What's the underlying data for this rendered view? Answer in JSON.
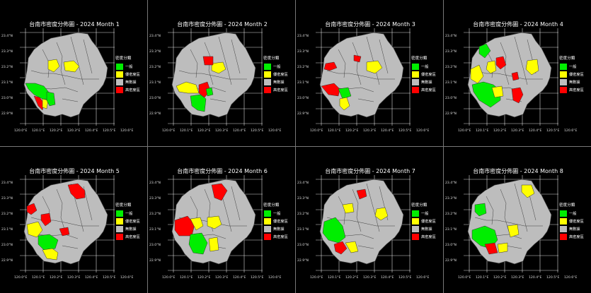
{
  "title_prefix": "台南市密度分佈圖 - 2024 Month",
  "legend": {
    "title": "密度分類",
    "items": [
      {
        "label": "一般",
        "color": "#00ee00"
      },
      {
        "label": "優密度區",
        "color": "#ffff00"
      },
      {
        "label": "無數據",
        "color": "#bdbdbd"
      },
      {
        "label": "高密度區",
        "color": "#ff0000"
      }
    ]
  },
  "axes": {
    "lon_ticks": [
      "120.0°E",
      "120.1°E",
      "120.2°E",
      "120.3°E",
      "120.4°E",
      "120.5°E",
      "120.6°E"
    ],
    "lat_ticks": [
      "23.4°N",
      "23.3°N",
      "23.2°N",
      "23.1°N",
      "23.0°N",
      "22.9°N"
    ]
  },
  "colors": {
    "green": "#00ee00",
    "yellow": "#ffff00",
    "gray": "#bdbdbd",
    "red": "#ff0000",
    "border": "#333333",
    "grid": "#ffffff"
  },
  "panels": [
    {
      "month": "1",
      "title": "台南市密度分佈圖 - 2024 Month 1",
      "regions": [
        {
          "shape": 0,
          "cls": "green"
        },
        {
          "shape": 1,
          "cls": "red"
        },
        {
          "shape": 2,
          "cls": "yellow"
        },
        {
          "shape": 3,
          "cls": "yellow"
        },
        {
          "shape": 4,
          "cls": "yellow"
        },
        {
          "shape": 5,
          "cls": "green"
        }
      ]
    },
    {
      "month": "2",
      "title": "台南市密度分佈圖 - 2024 Month 2",
      "regions": [
        {
          "shape": 6,
          "cls": "yellow"
        },
        {
          "shape": 7,
          "cls": "red"
        },
        {
          "shape": 8,
          "cls": "red"
        },
        {
          "shape": 9,
          "cls": "green"
        },
        {
          "shape": 10,
          "cls": "yellow"
        },
        {
          "shape": 11,
          "cls": "green"
        }
      ]
    },
    {
      "month": "3",
      "title": "台南市密度分佈圖 - 2024 Month 3",
      "regions": [
        {
          "shape": 12,
          "cls": "red"
        },
        {
          "shape": 13,
          "cls": "red"
        },
        {
          "shape": 14,
          "cls": "green"
        },
        {
          "shape": 15,
          "cls": "yellow"
        },
        {
          "shape": 16,
          "cls": "yellow"
        },
        {
          "shape": 17,
          "cls": "red"
        }
      ]
    },
    {
      "month": "4",
      "title": "台南市密度分佈圖 - 2024 Month 4",
      "regions": [
        {
          "shape": 18,
          "cls": "green"
        },
        {
          "shape": 19,
          "cls": "yellow"
        },
        {
          "shape": 20,
          "cls": "yellow"
        },
        {
          "shape": 21,
          "cls": "red"
        },
        {
          "shape": 22,
          "cls": "yellow"
        },
        {
          "shape": 23,
          "cls": "green"
        },
        {
          "shape": 24,
          "cls": "red"
        },
        {
          "shape": 25,
          "cls": "red"
        },
        {
          "shape": 26,
          "cls": "yellow"
        }
      ]
    },
    {
      "month": "5",
      "title": "台南市密度分佈圖 - 2024 Month 5",
      "regions": [
        {
          "shape": 27,
          "cls": "red"
        },
        {
          "shape": 28,
          "cls": "red"
        },
        {
          "shape": 29,
          "cls": "red"
        },
        {
          "shape": 30,
          "cls": "yellow"
        },
        {
          "shape": 31,
          "cls": "green"
        },
        {
          "shape": 32,
          "cls": "yellow"
        },
        {
          "shape": 33,
          "cls": "red"
        }
      ]
    },
    {
      "month": "6",
      "title": "台南市密度分佈圖 - 2024 Month 6",
      "regions": [
        {
          "shape": 34,
          "cls": "red"
        },
        {
          "shape": 35,
          "cls": "red"
        },
        {
          "shape": 36,
          "cls": "yellow"
        },
        {
          "shape": 37,
          "cls": "green"
        },
        {
          "shape": 38,
          "cls": "yellow"
        },
        {
          "shape": 39,
          "cls": "yellow"
        }
      ]
    },
    {
      "month": "7",
      "title": "台南市密度分佈圖 - 2024 Month 7",
      "regions": [
        {
          "shape": 40,
          "cls": "red"
        },
        {
          "shape": 41,
          "cls": "green"
        },
        {
          "shape": 42,
          "cls": "red"
        },
        {
          "shape": 43,
          "cls": "yellow"
        },
        {
          "shape": 44,
          "cls": "yellow"
        },
        {
          "shape": 45,
          "cls": "yellow"
        }
      ]
    },
    {
      "month": "8",
      "title": "台南市密度分佈圖 - 2024 Month 8",
      "regions": [
        {
          "shape": 46,
          "cls": "yellow"
        },
        {
          "shape": 47,
          "cls": "green"
        },
        {
          "shape": 48,
          "cls": "green"
        },
        {
          "shape": 49,
          "cls": "red"
        },
        {
          "shape": 50,
          "cls": "yellow"
        },
        {
          "shape": 51,
          "cls": "yellow"
        }
      ]
    }
  ]
}
